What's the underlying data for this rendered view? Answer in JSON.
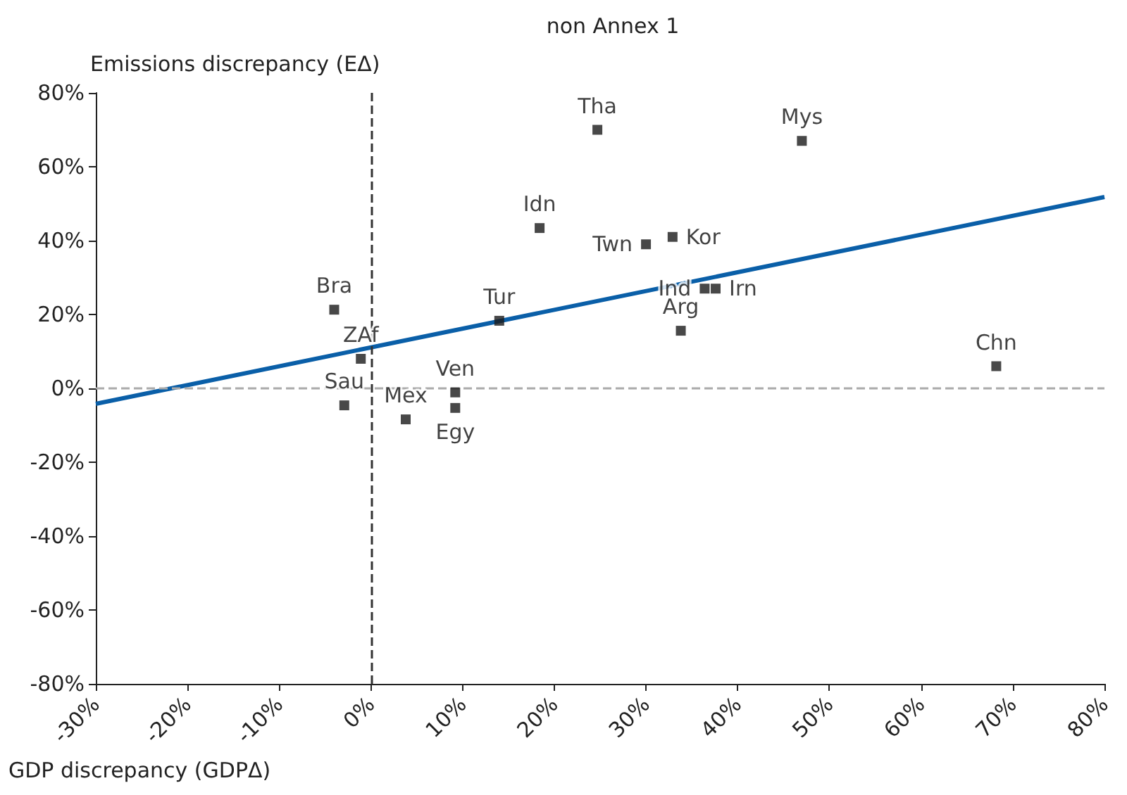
{
  "chart_data": {
    "type": "scatter",
    "title": "non Annex 1",
    "xlabel": "GDP discrepancy (GDPΔ)",
    "ylabel": "Emissions discrepancy (EΔ)",
    "x": [
      24.7,
      47,
      18.4,
      32.9,
      30,
      36.4,
      37.6,
      33.8,
      14,
      -4,
      -1.1,
      68.2,
      -2.9,
      3.8,
      9.2,
      9.2
    ],
    "series": [
      {
        "color": "#1a1a1a",
        "values": [
          70,
          67,
          43.4,
          41,
          39,
          27,
          27,
          15.6,
          18.3,
          21.3,
          8,
          6,
          -4.6,
          -8.4,
          -1.1,
          -5.3
        ]
      },
      {
        "type": "line",
        "marker": "none",
        "color": "#0a5fa8",
        "x": [
          -30,
          80
        ],
        "values": [
          -4.2,
          51.8
        ]
      }
    ],
    "annotations": [
      {
        "text": "Tha",
        "x": 24.7,
        "y": 70
      },
      {
        "text": "Mys",
        "x": 47,
        "y": 67
      },
      {
        "text": "Idn",
        "x": 18.4,
        "y": 43.4
      },
      {
        "text": "Kor",
        "x": 32.9,
        "y": 41
      },
      {
        "text": "Twn",
        "x": 30,
        "y": 39
      },
      {
        "text": "Ind",
        "x": 36.4,
        "y": 27
      },
      {
        "text": "Irn",
        "x": 37.6,
        "y": 27
      },
      {
        "text": "Arg",
        "x": 33.8,
        "y": 15.6
      },
      {
        "text": "Tur",
        "x": 14,
        "y": 18.3
      },
      {
        "text": "Bra",
        "x": -4,
        "y": 21.3
      },
      {
        "text": "ZAf",
        "x": -1.1,
        "y": 8
      },
      {
        "text": "Chn",
        "x": 68.2,
        "y": 6
      },
      {
        "text": "Sau",
        "x": -2.9,
        "y": -4.6
      },
      {
        "text": "Mex",
        "x": 3.8,
        "y": -8.4
      },
      {
        "text": "Ven",
        "x": 9.2,
        "y": -1.1
      },
      {
        "text": "Egy",
        "x": 9.2,
        "y": -5.3
      }
    ],
    "xlim": [
      -30,
      80
    ],
    "xticks": [
      {
        "value": -30,
        "label": "-30%"
      },
      {
        "value": -20,
        "label": "-20%"
      },
      {
        "value": -10,
        "label": "-10%"
      },
      {
        "value": 0,
        "label": "0%"
      },
      {
        "value": 10,
        "label": "10%"
      },
      {
        "value": 20,
        "label": "20%"
      },
      {
        "value": 30,
        "label": "30%"
      },
      {
        "value": 40,
        "label": "40%"
      },
      {
        "value": 50,
        "label": "50%"
      },
      {
        "value": 60,
        "label": "60%"
      },
      {
        "value": 70,
        "label": "70%"
      },
      {
        "value": 80,
        "label": "80%"
      }
    ],
    "ylim": [
      -80,
      80
    ],
    "yticks": [
      {
        "value": -80,
        "label": "-80%"
      },
      {
        "value": -60,
        "label": "-60%"
      },
      {
        "value": -40,
        "label": "-40%"
      },
      {
        "value": -20,
        "label": "-20%"
      },
      {
        "value": 0,
        "label": "0%"
      },
      {
        "value": 20,
        "label": "20%"
      },
      {
        "value": 40,
        "label": "40%"
      },
      {
        "value": 60,
        "label": "60%"
      },
      {
        "value": 80,
        "label": "80%"
      }
    ],
    "ref_lines": [
      {
        "axis": "x",
        "value": 0,
        "color": "#333333",
        "line_style": "dashed"
      },
      {
        "axis": "y",
        "value": 0,
        "color": "#aaaaaa",
        "line_style": "dashed"
      }
    ],
    "marker": "square",
    "grid": false
  }
}
